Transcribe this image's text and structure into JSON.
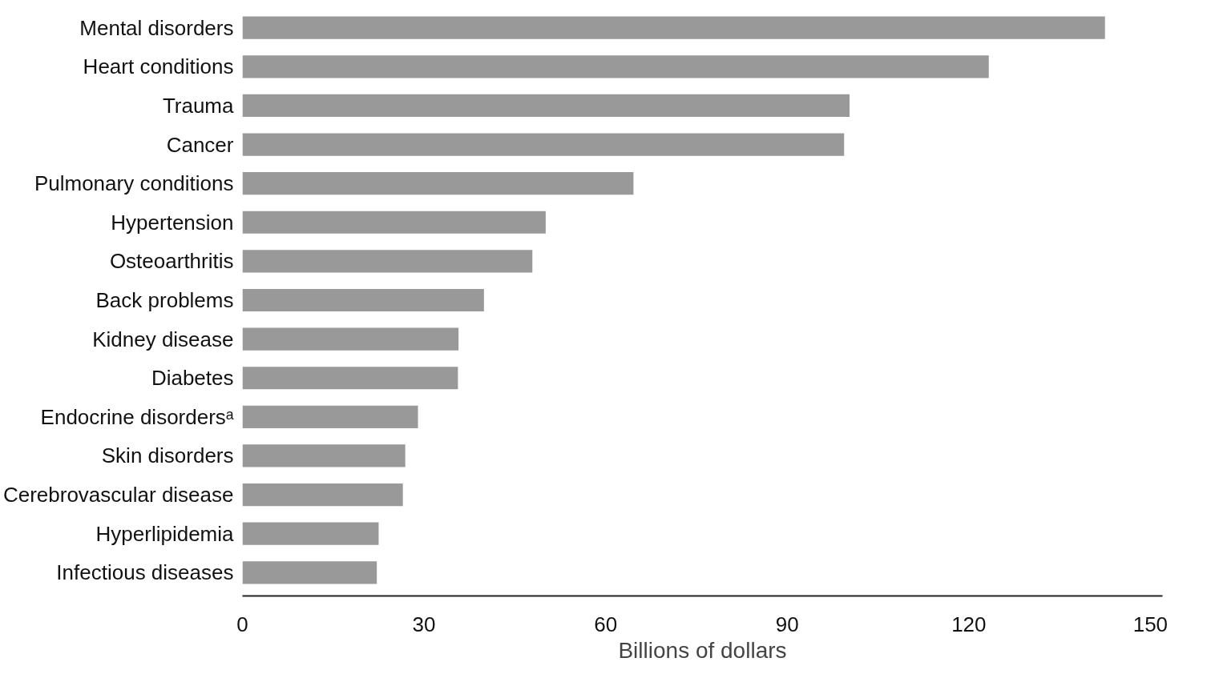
{
  "chart_data": {
    "type": "bar",
    "orientation": "horizontal",
    "xlabel": "Billions of dollars",
    "categories": [
      "Mental disorders",
      "Heart conditions",
      "Trauma",
      "Cancer",
      "Pulmonary conditions",
      "Hypertension",
      "Osteoarthritis",
      "Back problems",
      "Kidney disease",
      "Diabetes",
      "Endocrine disordersᵃ",
      "Skin disorders",
      "Cerebrovascular disease",
      "Hyperlipidemia",
      "Infectious diseases"
    ],
    "values": [
      142.5,
      123.3,
      100.3,
      99.4,
      64.6,
      50.1,
      47.9,
      39.9,
      35.7,
      35.6,
      29.0,
      26.9,
      26.5,
      22.5,
      22.2
    ],
    "color": "#999999",
    "xlim": [
      0,
      152
    ],
    "xticks": [
      0,
      30,
      60,
      90,
      120,
      150
    ],
    "grid": false
  }
}
